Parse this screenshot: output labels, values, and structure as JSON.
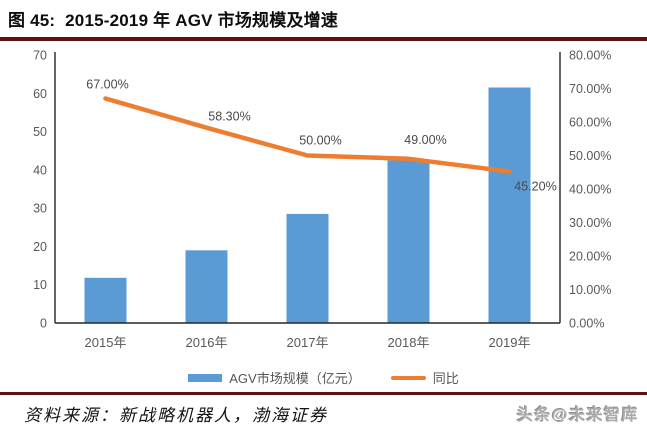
{
  "header": {
    "title": "图 45:  2015-2019 年 AGV 市场规模及增速"
  },
  "chart_data": {
    "type": "bar+line combo",
    "categories": [
      "2015年",
      "2016年",
      "2017年",
      "2018年",
      "2019年"
    ],
    "series": [
      {
        "name": "AGV市场规模（亿元）",
        "type": "bar",
        "axis": "left",
        "values": [
          11.8,
          19,
          28.5,
          42.5,
          61.5
        ],
        "color": "#5b9bd5"
      },
      {
        "name": "同比",
        "type": "line",
        "axis": "right",
        "values": [
          67,
          58.3,
          50,
          49,
          45.2
        ],
        "data_labels": [
          "67.00%",
          "58.30%",
          "50.00%",
          "49.00%",
          "45.20%"
        ],
        "color": "#ed7d31"
      }
    ],
    "left_axis": {
      "min": 0,
      "max": 70,
      "step": 10,
      "ticks": [
        "0",
        "10",
        "20",
        "30",
        "40",
        "50",
        "60",
        "70"
      ]
    },
    "right_axis": {
      "min": 0,
      "max": 80,
      "step": 10,
      "ticks": [
        "0.00%",
        "10.00%",
        "20.00%",
        "30.00%",
        "40.00%",
        "50.00%",
        "60.00%",
        "70.00%",
        "80.00%"
      ]
    },
    "grid": false,
    "legend_position": "bottom"
  },
  "footer": {
    "source": "资料来源：新战略机器人，渤海证券",
    "watermark": "头条@未来智库"
  },
  "colors": {
    "bar": "#5b9bd5",
    "line": "#ed7d31",
    "accent_rule": "#5e1111",
    "axis_line": "#262626",
    "tick_text": "#595959"
  }
}
